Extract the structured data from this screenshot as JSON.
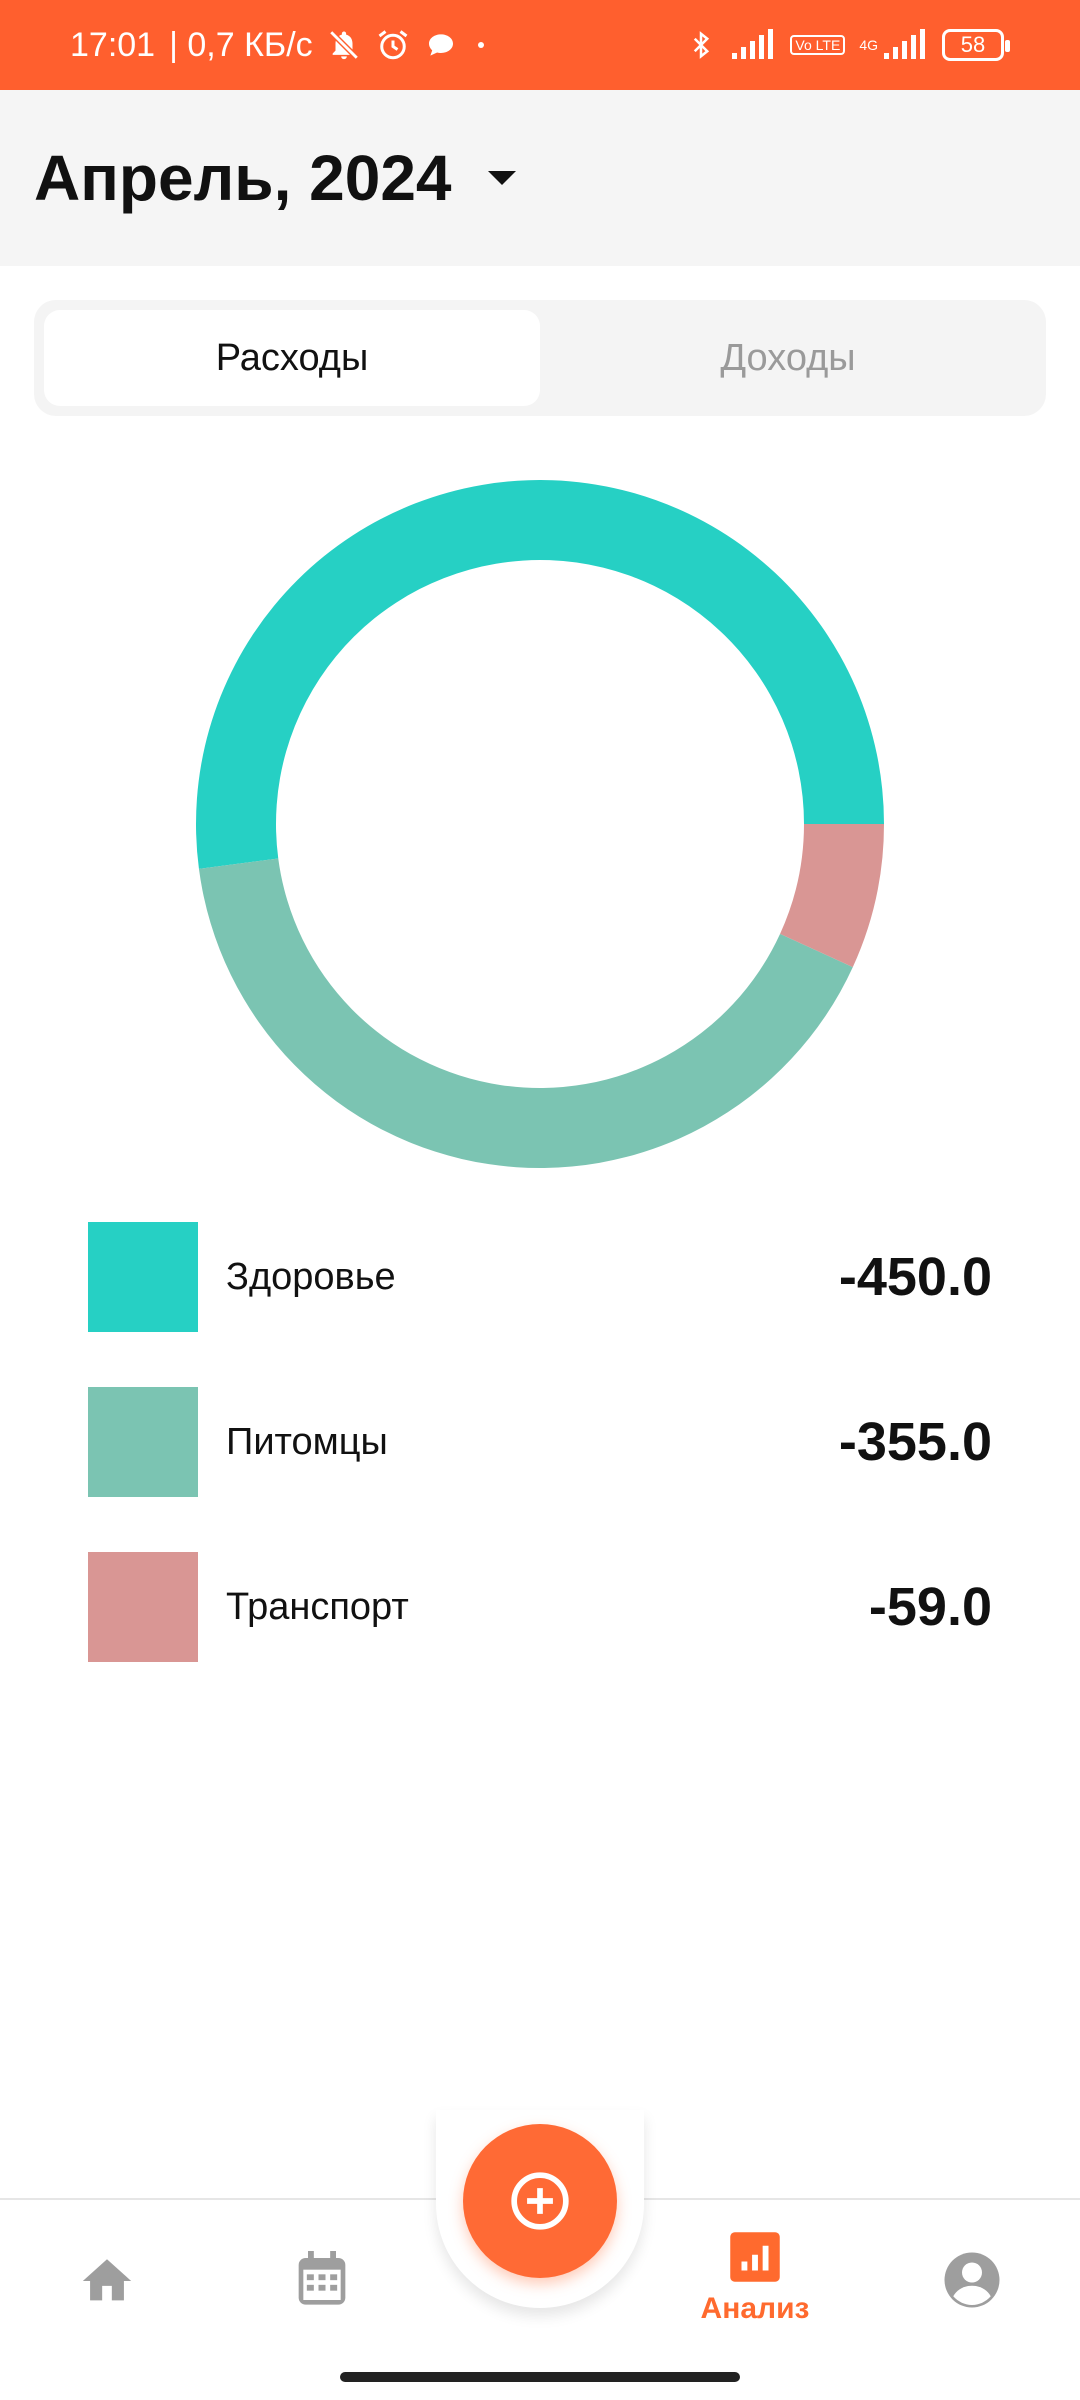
{
  "status_bar": {
    "time": "17:01",
    "speed": "| 0,7 КБ/с",
    "network_tag": "Vo LTE",
    "network_type": "4G",
    "battery": "58",
    "icons": [
      "muted-bell-icon",
      "alarm-icon",
      "message-bubble-icon",
      "dot-icon",
      "bluetooth-icon",
      "signal-icon",
      "signal-icon-2"
    ]
  },
  "header": {
    "title": "Апрель, 2024",
    "dropdown_icon": "caret-down-icon"
  },
  "tabs": [
    {
      "label": "Расходы",
      "active": true
    },
    {
      "label": "Доходы",
      "active": false
    }
  ],
  "chart_data": {
    "type": "pie",
    "categories": [
      "Здоровье",
      "Питомцы",
      "Транспорт"
    ],
    "values": [
      450.0,
      355.0,
      59.0
    ],
    "colors": [
      "#26d0c4",
      "#7bc4b2",
      "#d99694"
    ]
  },
  "legend": [
    {
      "name": "Здоровье",
      "value": "-450.0",
      "color": "#26d0c4"
    },
    {
      "name": "Питомцы",
      "value": "-355.0",
      "color": "#7bc4b2"
    },
    {
      "name": "Транспорт",
      "value": "-59.0",
      "color": "#d99694"
    }
  ],
  "bottom_nav": {
    "items": [
      {
        "icon": "home-icon",
        "label": ""
      },
      {
        "icon": "calendar-icon",
        "label": ""
      },
      {
        "icon": "add-circle-icon",
        "label": ""
      },
      {
        "icon": "analytics-icon",
        "label": "Анализ",
        "active": true
      },
      {
        "icon": "profile-icon",
        "label": ""
      }
    ]
  },
  "colors": {
    "accent": "#ff6a2e",
    "status_bar": "#ff5f2e",
    "inactive_icon": "#9e9e9e"
  }
}
